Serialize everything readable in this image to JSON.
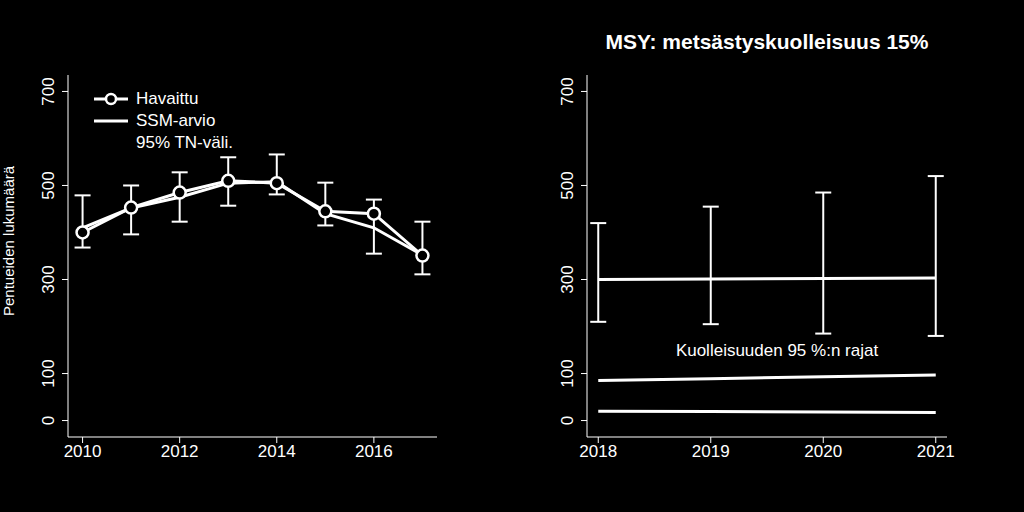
{
  "chart_data": [
    {
      "type": "line",
      "y_label": "Pentueiden lukumäärä",
      "x": [
        2010,
        2011,
        2012,
        2013,
        2014,
        2015,
        2016,
        2017
      ],
      "xlim": [
        2009.7,
        2017.3
      ],
      "xticks": [
        2010,
        2012,
        2014,
        2016
      ],
      "ylim": [
        -35,
        735
      ],
      "yticks": [
        0,
        100,
        300,
        500,
        700
      ],
      "legend": "upper left",
      "series": [
        {
          "name": "Havaittu",
          "color": "#ffffff",
          "marker": "circle",
          "values": [
            400,
            453,
            485,
            510,
            505,
            445,
            440,
            351
          ]
        },
        {
          "name": "SSM-arvio",
          "color": "#ffffff",
          "values": [
            410,
            452,
            475,
            505,
            508,
            440,
            410,
            352
          ],
          "interval": {
            "name": "95% TN-väli.",
            "low": [
              368,
              396,
              423,
              457,
              481,
              415,
              355,
              311
            ],
            "high": [
              479,
              500,
              528,
              560,
              566,
              506,
              470,
              423
            ]
          }
        }
      ]
    },
    {
      "type": "line",
      "title": "MSY: metsästyskuolleisuus 15%",
      "annotation": "Kuolleisuuden 95 %:n rajat",
      "x": [
        2018,
        2019,
        2020,
        2021
      ],
      "xlim": [
        2017.9,
        2021.1
      ],
      "xticks": [
        2018,
        2019,
        2020,
        2021
      ],
      "ylim": [
        -35,
        735
      ],
      "yticks": [
        0,
        100,
        300,
        500,
        700
      ],
      "series": [
        {
          "color": "#ffffff",
          "values": [
            300,
            301,
            302,
            303
          ],
          "interval": {
            "low": [
              210,
              205,
              185,
              180
            ],
            "high": [
              420,
              455,
              485,
              520
            ]
          }
        },
        {
          "color": "#ffffff",
          "values": [
            85,
            89,
            93,
            97
          ]
        },
        {
          "color": "#ffffff",
          "values": [
            20,
            19,
            18,
            17
          ]
        }
      ]
    }
  ]
}
